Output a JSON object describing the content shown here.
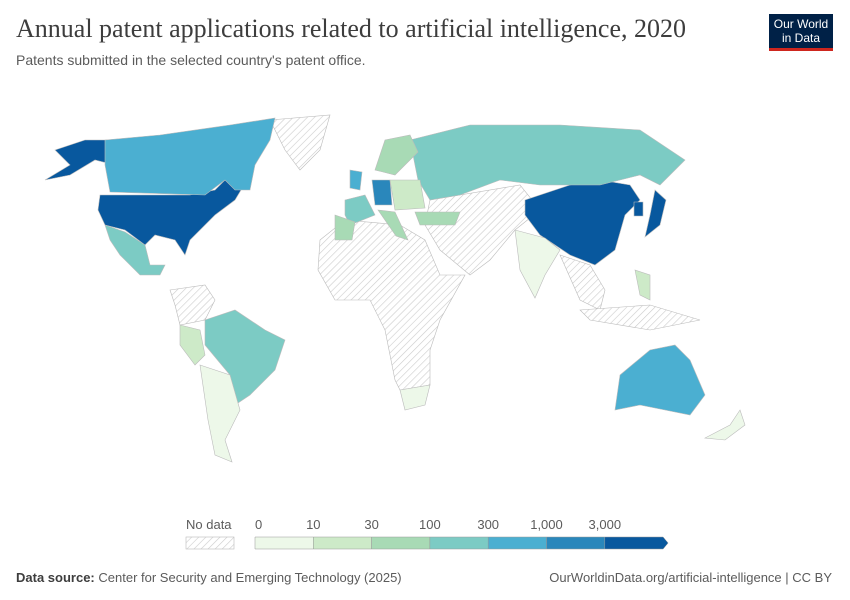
{
  "header": {
    "title": "Annual patent applications related to artificial intelligence, 2020",
    "subtitle": "Patents submitted in the selected country's patent office.",
    "logo": "Our World in Data"
  },
  "footer": {
    "source_label": "Data source:",
    "source": "Center for Security and Emerging Technology (2025)",
    "link": "OurWorldinData.org/artificial-intelligence | CC BY"
  },
  "chart_data": {
    "type": "choropleth",
    "title": "Annual patent applications related to artificial intelligence, 2020",
    "legend": {
      "no_data_label": "No data",
      "ticks": [
        "0",
        "10",
        "30",
        "100",
        "300",
        "1,000",
        "3,000"
      ],
      "bins": [
        {
          "range": "0-10",
          "color": "#edf8e9"
        },
        {
          "range": "10-30",
          "color": "#cdeac8"
        },
        {
          "range": "30-100",
          "color": "#a8dab5"
        },
        {
          "range": "100-300",
          "color": "#7ccbc4"
        },
        {
          "range": "300-1,000",
          "color": "#4bafd1"
        },
        {
          "range": "1,000-3,000",
          "color": "#2a87bb"
        },
        {
          "range": "3,000+",
          "color": "#08589e"
        }
      ],
      "no_data_color": "hatched"
    },
    "countries": [
      {
        "name": "United States",
        "bin": 6
      },
      {
        "name": "China",
        "bin": 6
      },
      {
        "name": "Japan",
        "bin": 6
      },
      {
        "name": "South Korea",
        "bin": 6
      },
      {
        "name": "Germany",
        "bin": 5
      },
      {
        "name": "Canada",
        "bin": 4
      },
      {
        "name": "United Kingdom",
        "bin": 4
      },
      {
        "name": "Australia",
        "bin": 4
      },
      {
        "name": "France",
        "bin": 3
      },
      {
        "name": "Russia",
        "bin": 3
      },
      {
        "name": "Brazil",
        "bin": 3
      },
      {
        "name": "Mexico",
        "bin": 3
      },
      {
        "name": "Spain",
        "bin": 2
      },
      {
        "name": "Italy",
        "bin": 2
      },
      {
        "name": "Turkey",
        "bin": 2
      },
      {
        "name": "Sweden/Finland",
        "bin": 2
      },
      {
        "name": "Peru",
        "bin": 1
      },
      {
        "name": "Philippines",
        "bin": 1
      },
      {
        "name": "Eastern Europe",
        "bin": 1
      },
      {
        "name": "India",
        "bin": 0
      },
      {
        "name": "Argentina/Chile",
        "bin": 0
      },
      {
        "name": "South Africa",
        "bin": 0
      },
      {
        "name": "New Zealand",
        "bin": 0
      }
    ]
  }
}
